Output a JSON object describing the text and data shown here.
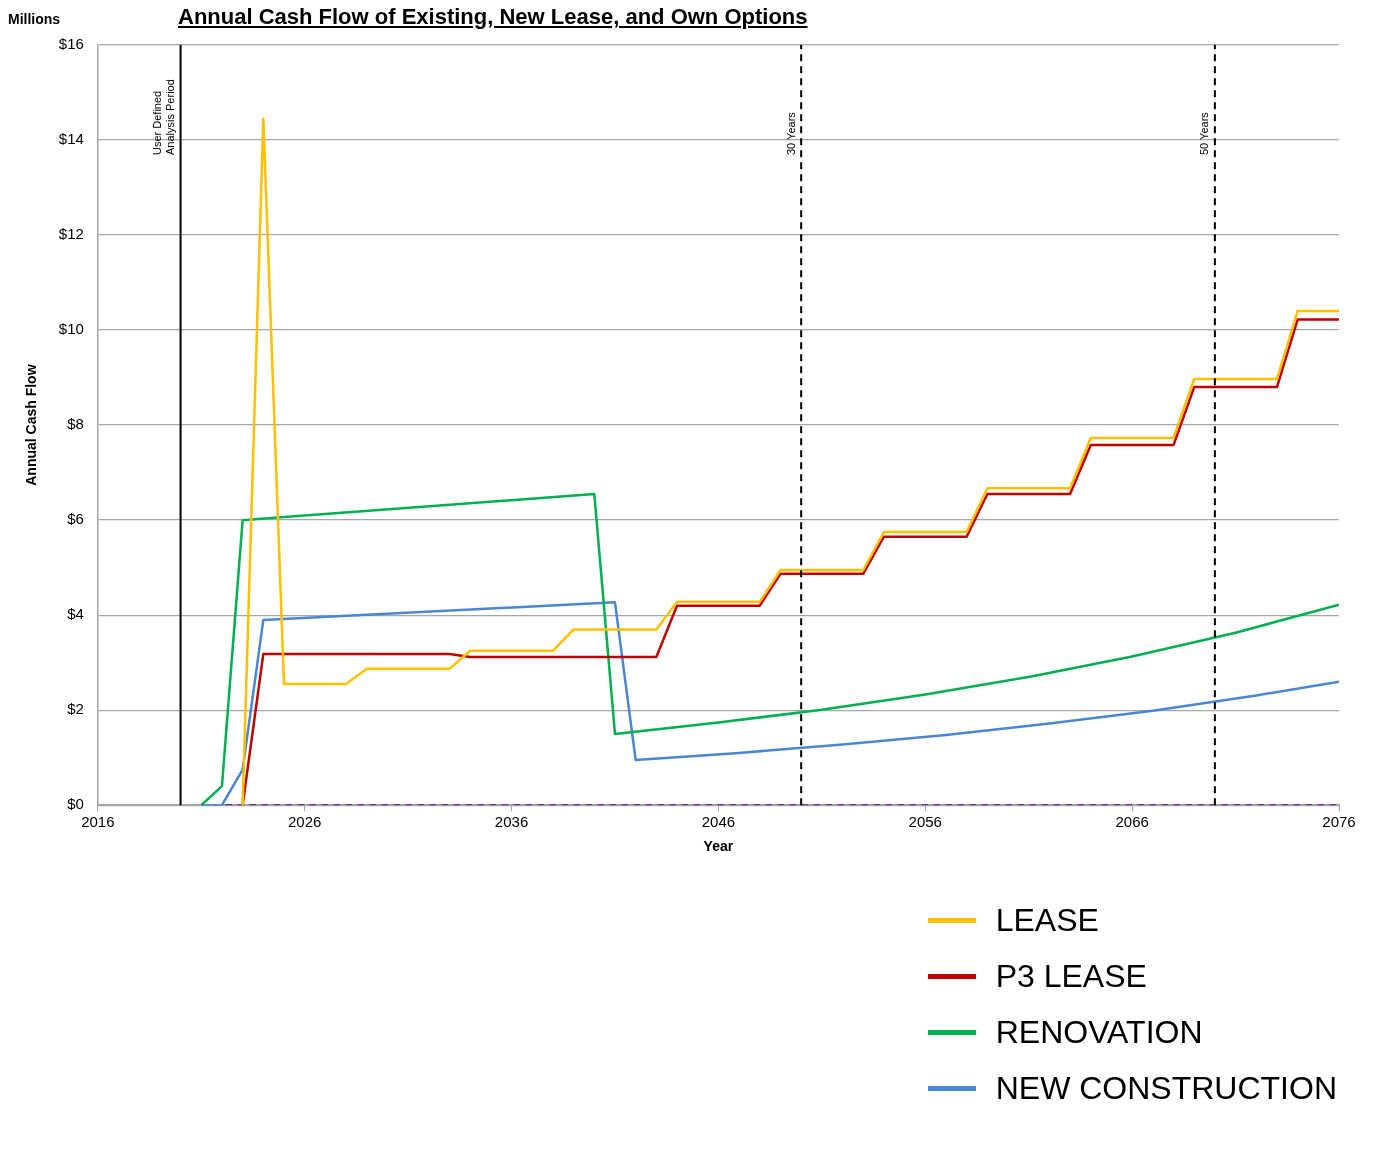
{
  "chart_data": {
    "type": "line",
    "title": "Annual Cash Flow of Existing, New Lease, and Own Options",
    "xlabel": "Year",
    "ylabel": "Annual Cash Flow",
    "annotations": [
      "Millions"
    ],
    "xlim": [
      2016,
      2076
    ],
    "xticks": [
      2016,
      2026,
      2036,
      2046,
      2056,
      2066,
      2076
    ],
    "ylim": [
      0,
      16
    ],
    "yticks": [
      {
        "value": 0,
        "label": "$0"
      },
      {
        "value": 2,
        "label": "$2"
      },
      {
        "value": 4,
        "label": "$4"
      },
      {
        "value": 6,
        "label": "$6"
      },
      {
        "value": 8,
        "label": "$8"
      },
      {
        "value": 10,
        "label": "$10"
      },
      {
        "value": 12,
        "label": "$12"
      },
      {
        "value": 14,
        "label": "$14"
      },
      {
        "value": 16,
        "label": "$16"
      }
    ],
    "grid": "y",
    "legend": "bottom right",
    "marker": "none",
    "ref_lines": [
      {
        "axis": "x",
        "value": 2020,
        "label": "User Defined\nAnalysis Period",
        "color": "#000000",
        "line_style": "solid"
      },
      {
        "axis": "x",
        "value": 2050,
        "label": "30 Years",
        "color": "#000000",
        "line_style": "dashed"
      },
      {
        "axis": "x",
        "value": 2070,
        "label": "50 Years",
        "color": "#000000",
        "line_style": "dashed"
      }
    ],
    "series": [
      {
        "name": "LEASE",
        "color": "#ffc000",
        "x": [
          2023,
          2024,
          2025,
          2028,
          2029,
          2033,
          2034,
          2038,
          2039,
          2043,
          2044,
          2048,
          2049,
          2053,
          2054,
          2058,
          2059,
          2063,
          2064,
          2068,
          2069,
          2073,
          2074,
          2076
        ],
        "values": [
          0,
          14.45,
          2.55,
          2.55,
          2.87,
          2.87,
          3.25,
          3.25,
          3.7,
          3.7,
          4.28,
          4.28,
          4.95,
          4.95,
          5.75,
          5.75,
          6.67,
          6.67,
          7.73,
          7.73,
          8.97,
          8.97,
          10.4,
          10.4
        ]
      },
      {
        "name": "P3 LEASE",
        "color": "#c00000",
        "x": [
          2023,
          2024,
          2033,
          2034,
          2043,
          2044,
          2048,
          2049,
          2053,
          2054,
          2058,
          2059,
          2063,
          2064,
          2068,
          2069,
          2073,
          2074,
          2076
        ],
        "values": [
          0,
          3.18,
          3.18,
          3.12,
          3.12,
          4.2,
          4.2,
          4.87,
          4.87,
          5.65,
          5.65,
          6.55,
          6.55,
          7.58,
          7.58,
          8.8,
          8.8,
          10.22,
          10.22
        ]
      },
      {
        "name": "RENOVATION",
        "color": "#00b050",
        "x": [
          2021,
          2022,
          2023,
          2040,
          2041,
          2046,
          2051,
          2056,
          2061,
          2066,
          2071,
          2076
        ],
        "values": [
          0,
          0.4,
          6.0,
          6.55,
          1.5,
          1.74,
          2.01,
          2.33,
          2.7,
          3.13,
          3.63,
          4.22
        ]
      },
      {
        "name": "NEW CONSTRUCTION",
        "color": "#4a86d6",
        "x": [
          2021,
          2022,
          2023,
          2024,
          2041,
          2042,
          2047,
          2052,
          2057,
          2062,
          2067,
          2072,
          2076
        ],
        "values": [
          0,
          0,
          0.75,
          3.9,
          4.27,
          0.95,
          1.1,
          1.28,
          1.48,
          1.72,
          1.99,
          2.31,
          2.6
        ]
      },
      {
        "color": "#7030a0",
        "line_style": "dashed",
        "x": [
          2021,
          2076
        ],
        "values": [
          0,
          0
        ]
      }
    ]
  }
}
